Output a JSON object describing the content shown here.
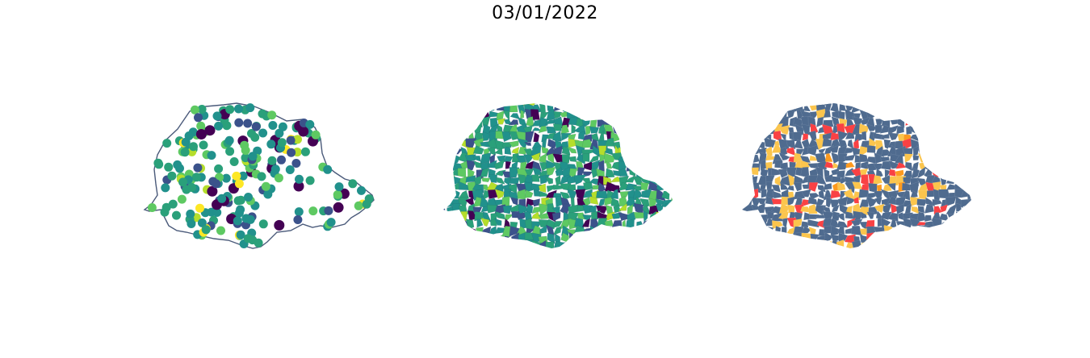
{
  "title": "03/01/2022",
  "colors": {
    "viridis": [
      "#440154",
      "#3b528b",
      "#21918c",
      "#2aa07a",
      "#5ec962",
      "#b5de2b",
      "#fde725"
    ],
    "outline": "#4a5a7a",
    "category_base": "#4f6b8f",
    "category_yellow": "#fbc54d",
    "category_orange": "#fd9a1f",
    "category_red": "#f94144"
  },
  "panels": [
    {
      "kind": "point-map"
    },
    {
      "kind": "choropleth-viridis"
    },
    {
      "kind": "choropleth-categorical"
    }
  ]
}
